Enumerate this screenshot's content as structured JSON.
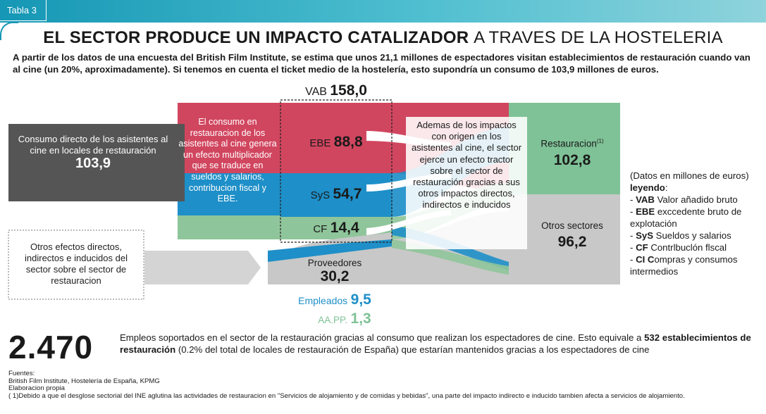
{
  "header": {
    "tab_label": "Tabla 3"
  },
  "title": {
    "bold": "EL SECTOR PRODUCE UN IMPACTO CATALIZADOR",
    "rest": "A TRAVES DE LA HOSTELERIA"
  },
  "intro": "A partir de los datos de una encuesta del British Film Institute, se estima que unos 21,1 millones de espectadores visitan establecimientos de restauración cuando van al cine (un 20%, aproximadamente). Si tenemos en cuenta el ticket medio de la hostelería, esto supondría un consumo de 103,9 millones de euros.",
  "diagram": {
    "colors": {
      "ebe": "#d1465f",
      "sys": "#1e8fc8",
      "cf": "#8fc59a",
      "dark": "#555555",
      "grey": "#c8c8c8",
      "green": "#7fc297"
    },
    "consumo": {
      "text": "Consumo directo de los asistentes al cine en locales de restauración",
      "value": "103,9"
    },
    "multiplicador": "El consumo en restauracion de los asistentes al cine genera un efecto multiplicador que se traduce en sueldos y salarios, contribucion fiscal y EBE.",
    "otros_efectos": "Otros efectos directos, indirectos e inducidos del sector sobre el sector de restauracion",
    "vab": {
      "label": "VAB",
      "value": "158,0"
    },
    "ebe": {
      "label": "EBE",
      "value": "88,8"
    },
    "sys": {
      "label": "SyS",
      "value": "54,7"
    },
    "cf": {
      "label": "CF",
      "value": "14,4"
    },
    "proveedores": {
      "label": "Proveedores",
      "value": "30,2"
    },
    "empleados": {
      "label": "Empleados",
      "value": "9,5"
    },
    "aapp": {
      "label": "AA.PP.",
      "value": "1,3"
    },
    "ademas": "Ademas de los impactos con origen en los asistentes al cine, el sector ejerce un efecto tractor sobre el sector de restauración gracias a sus otros impactos directos, indirectos e inducidos",
    "restauracion": {
      "label": "Restauracion",
      "sup": "(1)",
      "value": "102,8"
    },
    "otros_sectores": {
      "label": "Otros sectores",
      "value": "96,2"
    }
  },
  "legend": {
    "note": "(Datos en millones de euros)",
    "title": "leyendo",
    "items": [
      {
        "abbr": "VAB",
        "text": " Valor añadido bruto"
      },
      {
        "abbr": "EBE",
        "text": " exccedente bruto de explotación"
      },
      {
        "abbr": "SyS",
        "text": " Sueldos y salarios"
      },
      {
        "abbr": "CF",
        "text": " Contrlbuclón flscal"
      },
      {
        "abbr": "CI C",
        "text": "ompras y consumos intermedios"
      }
    ]
  },
  "footer": {
    "big_number": "2.470",
    "text_a": "Empleos soportados en el sector de la restauración gracias al consumo que realizan los espectadores de cine. Esto equivale a ",
    "text_b": "532 establecimientos de restauración",
    "text_c": " (0.2% del total de locales de restauración de España) que estarían mantenidos gracias a los espectadores de cine",
    "sources_title": "Fuentes:",
    "sources_line": "British Film Institute, Hostelería de España, KPMG",
    "elaboracion": "Elaboracion propia",
    "note": "( 1)Debido a que el desglose sectorial del INE aglutina las actividades de restauracion en \"Servicios de alojamiento y de comidas y bebidas\", una parte del impacto indirecto e inducido tambien afecta a servicios de alojamiento."
  }
}
